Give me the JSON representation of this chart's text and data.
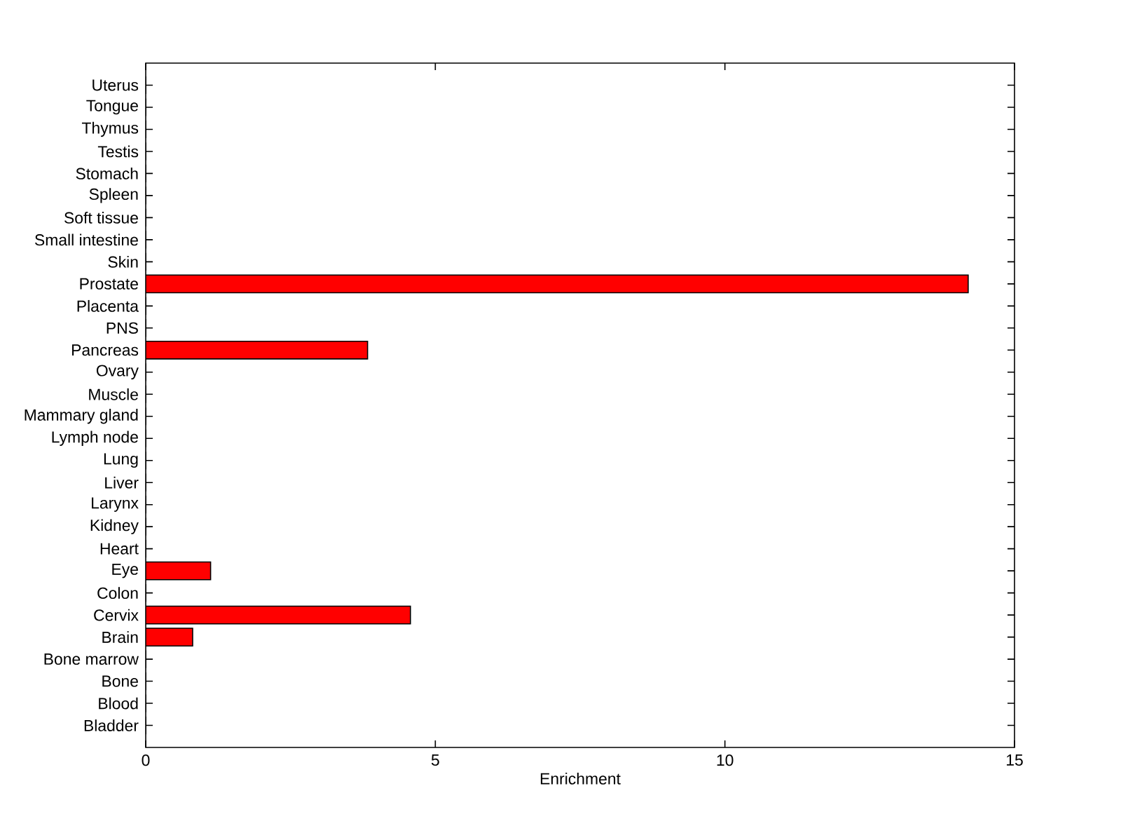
{
  "chart_data": {
    "type": "bar",
    "orientation": "horizontal",
    "xlabel": "Enrichment",
    "categories": [
      "Uterus",
      "Tongue",
      "Thymus",
      "Testis",
      "Stomach",
      "Spleen",
      "Soft tissue",
      "Small intestine",
      "Skin",
      "Prostate",
      "Placenta",
      "PNS",
      "Pancreas",
      "Ovary",
      "Muscle",
      "Mammary gland",
      "Lymph node",
      "Lung",
      "Liver",
      "Larynx",
      "Kidney",
      "Heart",
      "Eye",
      "Colon",
      "Cervix",
      "Brain",
      "Bone marrow",
      "Bone",
      "Blood",
      "Bladder"
    ],
    "values": [
      0,
      0,
      0,
      0,
      0,
      0,
      0,
      0,
      0,
      14.2,
      0,
      0,
      3.83,
      0,
      0,
      0,
      0,
      0,
      0,
      0,
      0,
      0,
      1.12,
      0,
      4.57,
      0.81,
      0,
      0,
      0,
      0
    ],
    "color": "#ff0000",
    "xlim": [
      0,
      15
    ],
    "xticks": [
      0,
      5,
      10,
      15
    ]
  }
}
